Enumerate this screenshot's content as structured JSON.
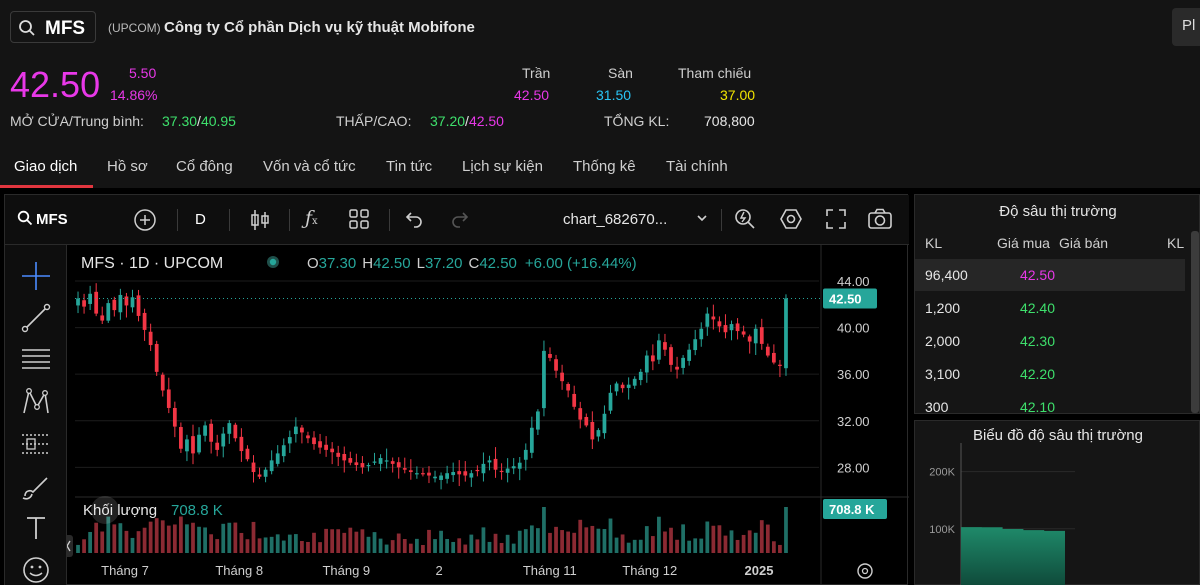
{
  "header": {
    "symbol": "MFS",
    "exchange": "(UPCOM)",
    "company": "Công ty Cổ phần Dịch vụ kỹ thuật Mobifone",
    "corner_button": "Pl"
  },
  "summary": {
    "price": "42.50",
    "change": "5.50",
    "change_pct": "14.86%",
    "open_avg_label": "MỞ CỬA/Trung bình:",
    "open": "37.30",
    "avg": "40.95",
    "low_high_label": "THẤP/CAO:",
    "low": "37.20",
    "high": "42.50",
    "ceiling_label": "Trần",
    "ceiling": "42.50",
    "floor_label": "Sàn",
    "floor": "31.50",
    "ref_label": "Tham chiếu",
    "ref": "37.00",
    "volume_label": "TỔNG KL:",
    "volume": "708,800",
    "slash": "/"
  },
  "tabs": [
    "Giao dịch",
    "Hồ sơ",
    "Cổ đông",
    "Vốn và cổ tức",
    "Tin tức",
    "Lịch sự kiện",
    "Thống kê",
    "Tài chính"
  ],
  "chart_toolbar": {
    "symbol": "MFS",
    "interval": "D",
    "chart_name": "chart_682670..."
  },
  "chart_data": {
    "type": "candlestick",
    "legend_title": "MFS · 1D · UPCOM",
    "ohlc": {
      "o_label": "O",
      "o": "37.30",
      "h_label": "H",
      "h": "42.50",
      "l_label": "L",
      "l": "37.20",
      "c_label": "C",
      "c": "42.50",
      "change": "+6.00 (+16.44%)"
    },
    "y_ticks": [
      "44.00",
      "40.00",
      "36.00",
      "32.00",
      "28.00"
    ],
    "y_tick_values": [
      44,
      40,
      36,
      32,
      28
    ],
    "ylim": [
      25.8,
      45.2
    ],
    "last_price_label": "42.50",
    "last_price": 42.5,
    "volume_label": "Khối lượng",
    "volume_value": "708.8 K",
    "volume_badge": "708.8 K",
    "x_ticks": [
      "Tháng 7",
      "Tháng 8",
      "Tháng 9",
      "2",
      "Tháng 11",
      "Tháng 12",
      "2025"
    ],
    "closes": [
      42.5,
      41.8,
      42.9,
      41.2,
      40.6,
      42.1,
      41.5,
      42.8,
      41.9,
      42.6,
      41.0,
      39.8,
      38.5,
      36.2,
      34.6,
      33.1,
      31.5,
      29.6,
      30.4,
      29.2,
      30.8,
      31.6,
      30.2,
      29.5,
      30.9,
      31.8,
      30.5,
      29.4,
      28.7,
      27.6,
      27.2,
      27.8,
      28.6,
      29.2,
      29.9,
      30.6,
      31.5,
      31.0,
      30.5,
      30.0,
      29.7,
      29.5,
      29.3,
      28.9,
      28.6,
      28.4,
      28.2,
      28.0,
      28.2,
      28.5,
      28.8,
      28.6,
      28.3,
      28.0,
      27.8,
      27.6,
      27.5,
      27.4,
      27.3,
      27.2,
      27.3,
      27.5,
      27.6,
      27.4,
      27.3,
      27.5,
      27.7,
      28.3,
      28.6,
      27.8,
      27.6,
      27.9,
      28.1,
      28.4,
      29.5,
      31.4,
      32.8,
      38.0,
      37.4,
      36.3,
      35.4,
      34.6,
      33.2,
      32.1,
      31.6,
      30.4,
      31.2,
      32.6,
      34.4,
      35.2,
      34.8,
      35.1,
      35.6,
      36.2,
      37.6,
      37.1,
      38.9,
      38.1,
      36.8,
      36.4,
      37.4,
      38.1,
      39.0,
      39.9,
      41.2,
      40.7,
      40.1,
      39.6,
      40.3,
      39.7,
      39.4,
      38.8,
      39.9,
      38.6,
      37.6,
      37.0,
      36.8,
      42.5
    ],
    "vol_scale_ticks": []
  },
  "depth": {
    "title": "Độ sâu thị trường",
    "headers": {
      "kl": "KL",
      "bid": "Giá mua",
      "ask": "Giá bán",
      "kl2": "KL"
    },
    "rows": [
      {
        "kl": "96,400",
        "bid": "42.50",
        "color": "#e838e8"
      },
      {
        "kl": "1,200",
        "bid": "42.40",
        "color": "#3ee06c"
      },
      {
        "kl": "2,000",
        "bid": "42.30",
        "color": "#3ee06c"
      },
      {
        "kl": "3,100",
        "bid": "42.20",
        "color": "#3ee06c"
      },
      {
        "kl": "300",
        "bid": "42.10",
        "color": "#3ee06c"
      }
    ]
  },
  "depth_chart": {
    "title": "Biểu đồ độ sâu thị trường",
    "y_ticks": [
      "200K",
      "100K"
    ],
    "y_tick_values": [
      200000,
      100000
    ],
    "cumulative_bid": [
      96400,
      97600,
      99600,
      102700,
      103000
    ],
    "ylim": [
      0,
      250000
    ]
  },
  "colors": {
    "up": "#26a69a",
    "down": "#f23645",
    "magenta": "#e838e8",
    "green": "#3ee06c",
    "cyan": "#29c5f6",
    "yellow": "#f2e400",
    "tab_active": "#e2363f"
  }
}
